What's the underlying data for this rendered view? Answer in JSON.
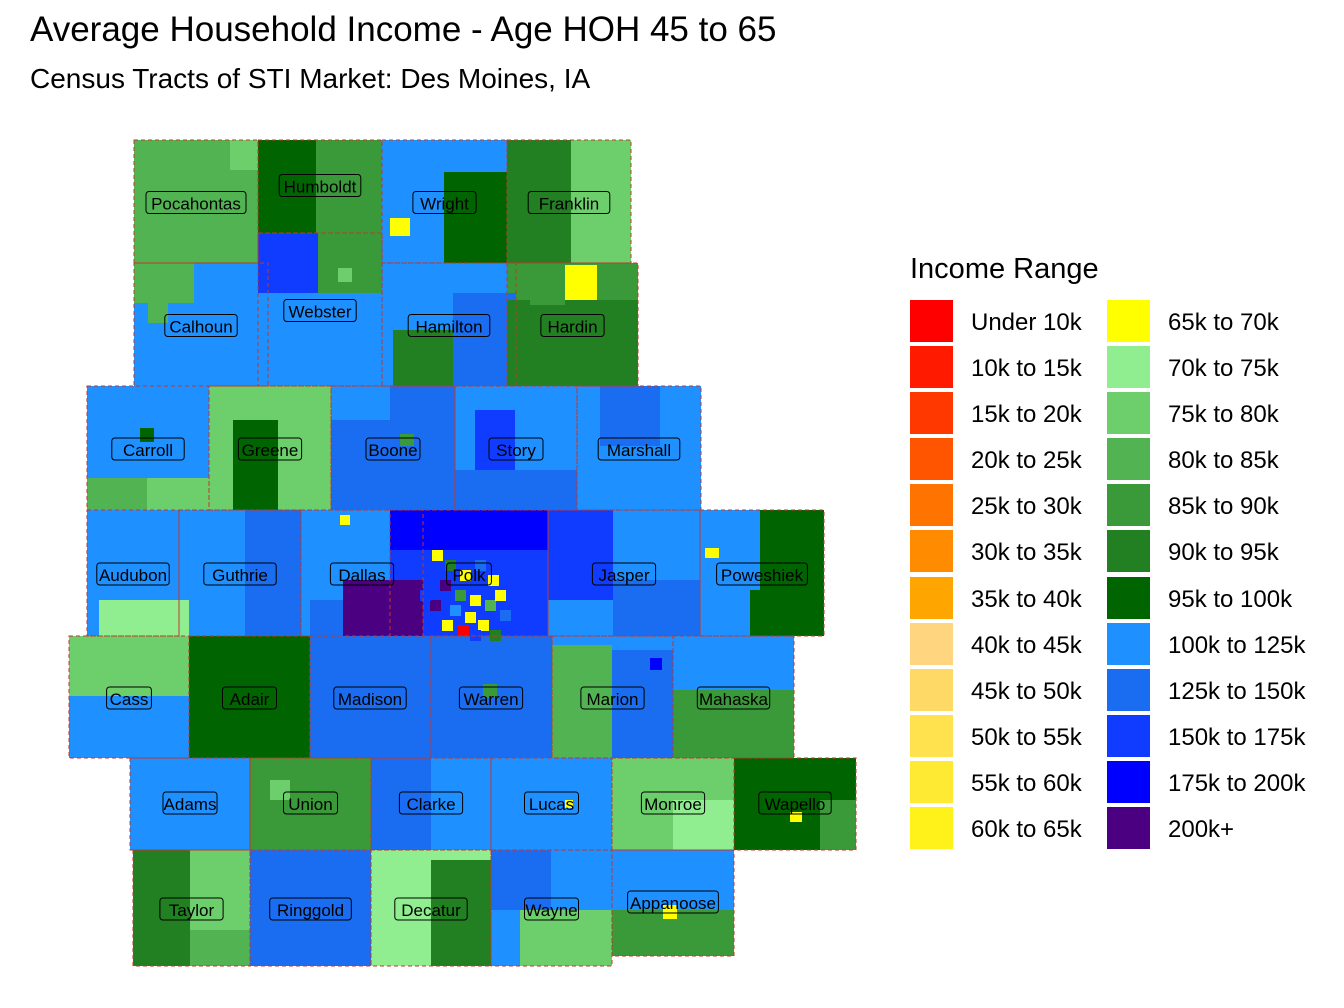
{
  "title": "Average Household Income - Age HOH 45 to 65",
  "subtitle": "Census Tracts of STI Market: Des Moines, IA",
  "legend": {
    "title": "Income Range",
    "items": [
      {
        "label": "Under 10k",
        "color": "#ff0000"
      },
      {
        "label": "10k to 15k",
        "color": "#ff1a00"
      },
      {
        "label": "15k to 20k",
        "color": "#ff3800"
      },
      {
        "label": "20k to 25k",
        "color": "#ff5500"
      },
      {
        "label": "25k to 30k",
        "color": "#ff7300"
      },
      {
        "label": "30k to 35k",
        "color": "#ff8c00"
      },
      {
        "label": "35k to 40k",
        "color": "#ffa500"
      },
      {
        "label": "40k to 45k",
        "color": "#ffd580"
      },
      {
        "label": "45k to 50k",
        "color": "#ffd966"
      },
      {
        "label": "50k to 55k",
        "color": "#ffe24d"
      },
      {
        "label": "55k to 60k",
        "color": "#ffea33"
      },
      {
        "label": "60k to 65k",
        "color": "#fff21a"
      },
      {
        "label": "65k to 70k",
        "color": "#ffff00"
      },
      {
        "label": "70k to 75k",
        "color": "#90ee90"
      },
      {
        "label": "75k to 80k",
        "color": "#6ccf6c"
      },
      {
        "label": "80k to 85k",
        "color": "#52b352"
      },
      {
        "label": "85k to 90k",
        "color": "#3a9a3a"
      },
      {
        "label": "90k to 95k",
        "color": "#227f22"
      },
      {
        "label": "95k to 100k",
        "color": "#006400"
      },
      {
        "label": "100k to 125k",
        "color": "#1e90ff"
      },
      {
        "label": "125k to 150k",
        "color": "#1a6cf0"
      },
      {
        "label": "150k to 175k",
        "color": "#0f3cff"
      },
      {
        "label": "175k to 200k",
        "color": "#0000ff"
      },
      {
        "label": "200k+",
        "color": "#4b0082"
      }
    ]
  },
  "counties": [
    {
      "name": "Pocahontas",
      "bin": "80k to 85k"
    },
    {
      "name": "Humboldt",
      "bin": "85k to 90k"
    },
    {
      "name": "Wright",
      "bin": "100k to 125k"
    },
    {
      "name": "Franklin",
      "bin": "85k to 90k"
    },
    {
      "name": "Calhoun",
      "bin": "100k to 125k"
    },
    {
      "name": "Webster",
      "bin": "100k to 125k"
    },
    {
      "name": "Hamilton",
      "bin": "100k to 125k"
    },
    {
      "name": "Hardin",
      "bin": "85k to 90k"
    },
    {
      "name": "Carroll",
      "bin": "100k to 125k"
    },
    {
      "name": "Greene",
      "bin": "75k to 80k"
    },
    {
      "name": "Boone",
      "bin": "100k to 125k"
    },
    {
      "name": "Story",
      "bin": "100k to 125k"
    },
    {
      "name": "Marshall",
      "bin": "100k to 125k"
    },
    {
      "name": "Audubon",
      "bin": "100k to 125k"
    },
    {
      "name": "Guthrie",
      "bin": "100k to 125k"
    },
    {
      "name": "Dallas",
      "bin": "100k to 125k"
    },
    {
      "name": "Polk",
      "bin": "150k to 175k"
    },
    {
      "name": "Jasper",
      "bin": "100k to 125k"
    },
    {
      "name": "Poweshiek",
      "bin": "100k to 125k"
    },
    {
      "name": "Cass",
      "bin": "100k to 125k"
    },
    {
      "name": "Adair",
      "bin": "95k to 100k"
    },
    {
      "name": "Madison",
      "bin": "125k to 150k"
    },
    {
      "name": "Warren",
      "bin": "125k to 150k"
    },
    {
      "name": "Marion",
      "bin": "100k to 125k"
    },
    {
      "name": "Mahaska",
      "bin": "100k to 125k"
    },
    {
      "name": "Adams",
      "bin": "100k to 125k"
    },
    {
      "name": "Union",
      "bin": "85k to 90k"
    },
    {
      "name": "Clarke",
      "bin": "100k to 125k"
    },
    {
      "name": "Lucas",
      "bin": "100k to 125k"
    },
    {
      "name": "Monroe",
      "bin": "75k to 80k"
    },
    {
      "name": "Wapello",
      "bin": "95k to 100k"
    },
    {
      "name": "Taylor",
      "bin": "85k to 90k"
    },
    {
      "name": "Ringgold",
      "bin": "125k to 150k"
    },
    {
      "name": "Decatur",
      "bin": "70k to 75k"
    },
    {
      "name": "Wayne",
      "bin": "100k to 125k"
    },
    {
      "name": "Appanoose",
      "bin": "85k to 90k"
    }
  ]
}
